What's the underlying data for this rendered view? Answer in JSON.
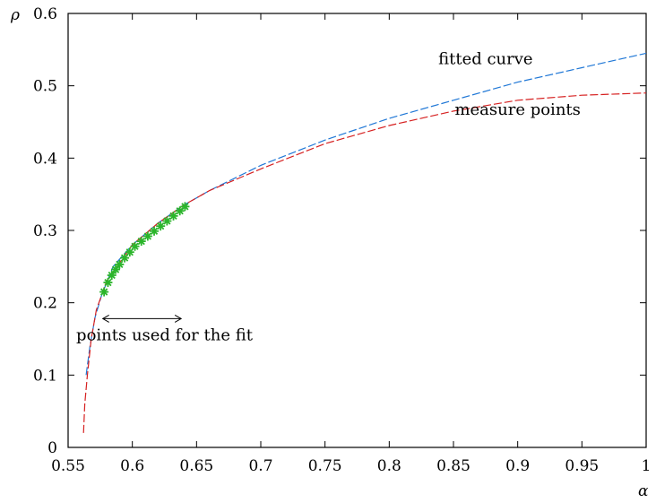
{
  "chart_data": {
    "type": "line",
    "title": "",
    "xlabel": "α",
    "ylabel": "ρ",
    "xlim": [
      0.55,
      1.0
    ],
    "ylim": [
      0,
      0.6
    ],
    "grid": false,
    "x_ticks": [
      {
        "value": 0.55,
        "label": "0.55"
      },
      {
        "value": 0.6,
        "label": "0.6"
      },
      {
        "value": 0.65,
        "label": "0.65"
      },
      {
        "value": 0.7,
        "label": "0.7"
      },
      {
        "value": 0.75,
        "label": "0.75"
      },
      {
        "value": 0.8,
        "label": "0.8"
      },
      {
        "value": 0.85,
        "label": "0.85"
      },
      {
        "value": 0.9,
        "label": "0.9"
      },
      {
        "value": 0.95,
        "label": "0.95"
      },
      {
        "value": 1.0,
        "label": "1"
      }
    ],
    "y_ticks": [
      {
        "value": 0,
        "label": "0"
      },
      {
        "value": 0.1,
        "label": "0.1"
      },
      {
        "value": 0.2,
        "label": "0.2"
      },
      {
        "value": 0.3,
        "label": "0.3"
      },
      {
        "value": 0.4,
        "label": "0.4"
      },
      {
        "value": 0.5,
        "label": "0.5"
      },
      {
        "value": 0.6,
        "label": "0.6"
      }
    ],
    "series": [
      {
        "name": "fitted curve",
        "style": "dashed",
        "color": "#1f77d6",
        "points": [
          [
            0.564,
            0.1
          ],
          [
            0.567,
            0.14
          ],
          [
            0.571,
            0.18
          ],
          [
            0.576,
            0.21
          ],
          [
            0.585,
            0.25
          ],
          [
            0.6,
            0.28
          ],
          [
            0.62,
            0.31
          ],
          [
            0.64,
            0.335
          ],
          [
            0.66,
            0.355
          ],
          [
            0.7,
            0.39
          ],
          [
            0.75,
            0.425
          ],
          [
            0.8,
            0.455
          ],
          [
            0.85,
            0.48
          ],
          [
            0.9,
            0.505
          ],
          [
            0.95,
            0.525
          ],
          [
            1.0,
            0.545
          ]
        ]
      },
      {
        "name": "measure points",
        "style": "dashed",
        "color": "#d62020",
        "points": [
          [
            0.562,
            0.02
          ],
          [
            0.563,
            0.06
          ],
          [
            0.565,
            0.1
          ],
          [
            0.568,
            0.15
          ],
          [
            0.572,
            0.19
          ],
          [
            0.58,
            0.23
          ],
          [
            0.6,
            0.28
          ],
          [
            0.62,
            0.31
          ],
          [
            0.64,
            0.335
          ],
          [
            0.66,
            0.355
          ],
          [
            0.7,
            0.385
          ],
          [
            0.75,
            0.42
          ],
          [
            0.8,
            0.445
          ],
          [
            0.85,
            0.465
          ],
          [
            0.9,
            0.48
          ],
          [
            0.95,
            0.487
          ],
          [
            1.0,
            0.49
          ]
        ]
      },
      {
        "name": "points used for the fit",
        "style": "markers",
        "marker": "*",
        "color": "#2bb52b",
        "points": [
          [
            0.578,
            0.215
          ],
          [
            0.581,
            0.228
          ],
          [
            0.584,
            0.238
          ],
          [
            0.587,
            0.246
          ],
          [
            0.59,
            0.253
          ],
          [
            0.594,
            0.262
          ],
          [
            0.598,
            0.27
          ],
          [
            0.602,
            0.278
          ],
          [
            0.607,
            0.285
          ],
          [
            0.612,
            0.292
          ],
          [
            0.617,
            0.299
          ],
          [
            0.622,
            0.306
          ],
          [
            0.627,
            0.313
          ],
          [
            0.632,
            0.32
          ],
          [
            0.637,
            0.327
          ],
          [
            0.641,
            0.333
          ]
        ]
      }
    ],
    "annotations": [
      {
        "text": "fitted curve",
        "x": 0.875,
        "y": 0.53
      },
      {
        "text": "measure points",
        "x": 0.9,
        "y": 0.46
      },
      {
        "text": "points used for the fit",
        "x": 0.625,
        "y": 0.148,
        "arrow_from": 0.577,
        "arrow_to": 0.638,
        "arrow_y": 0.178
      }
    ]
  }
}
